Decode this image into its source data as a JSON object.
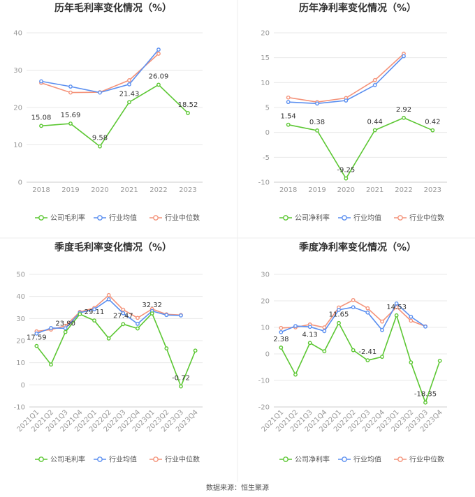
{
  "colors": {
    "company": "#5cc733",
    "industry_avg": "#5b8ff0",
    "industry_median": "#f4937a"
  },
  "legends": {
    "gross": [
      "公司毛利率",
      "行业均值",
      "行业中位数"
    ],
    "net": [
      "公司净利率",
      "行业均值",
      "行业中位数"
    ]
  },
  "source": "数据来源：恒生聚源",
  "chart_data": [
    {
      "type": "line",
      "title": "历年毛利率变化情况（%）",
      "categories": [
        "2018",
        "2019",
        "2020",
        "2021",
        "2022",
        "2023"
      ],
      "ylim": [
        0,
        40
      ],
      "yticks": [
        0,
        10,
        20,
        30,
        40
      ],
      "series": [
        {
          "name": "公司毛利率",
          "values": [
            15.08,
            15.69,
            9.58,
            21.43,
            26.09,
            18.52
          ],
          "labels": [
            "15.08",
            "15.69",
            "9.58",
            "21.43",
            "26.09",
            "18.52"
          ]
        },
        {
          "name": "行业均值",
          "values": [
            27.0,
            25.6,
            24.0,
            26.2,
            35.5,
            null
          ]
        },
        {
          "name": "行业中位数",
          "values": [
            26.6,
            24.0,
            24.1,
            27.3,
            34.4,
            null
          ]
        }
      ]
    },
    {
      "type": "line",
      "title": "历年净利率变化情况（%）",
      "categories": [
        "2018",
        "2019",
        "2020",
        "2021",
        "2022",
        "2023"
      ],
      "ylim": [
        -10,
        20
      ],
      "yticks": [
        -10,
        -5,
        0,
        5,
        10,
        15,
        20
      ],
      "series": [
        {
          "name": "公司净利率",
          "values": [
            1.54,
            0.38,
            -9.25,
            0.44,
            2.92,
            0.42
          ],
          "labels": [
            "1.54",
            "0.38",
            "-9.25",
            "0.44",
            "2.92",
            "0.42"
          ]
        },
        {
          "name": "行业均值",
          "values": [
            6.1,
            5.8,
            6.4,
            9.5,
            15.3,
            null
          ]
        },
        {
          "name": "行业中位数",
          "values": [
            7.0,
            6.1,
            6.9,
            10.5,
            15.8,
            null
          ]
        }
      ]
    },
    {
      "type": "line",
      "title": "季度毛利率变化情况（%）",
      "categories": [
        "2021Q1",
        "2021Q2",
        "2021Q3",
        "2021Q4",
        "2022Q1",
        "2022Q2",
        "2022Q3",
        "2022Q4",
        "2023Q1",
        "2023Q2",
        "2023Q3",
        "2023Q4"
      ],
      "ylim": [
        -10,
        50
      ],
      "yticks": [
        -10,
        0,
        10,
        20,
        30,
        40,
        50
      ],
      "series": [
        {
          "name": "公司毛利率",
          "values": [
            17.59,
            9.2,
            23.9,
            32.0,
            29.11,
            21.0,
            27.47,
            25.5,
            32.32,
            16.5,
            -0.72,
            15.5
          ],
          "labels": [
            "17.59",
            "",
            "23.90",
            "",
            "29.11",
            "",
            "27.47",
            "",
            "32.32",
            "",
            "-0.72",
            ""
          ]
        },
        {
          "name": "行业均值",
          "values": [
            23.2,
            25.7,
            25.6,
            32.6,
            34.2,
            38.7,
            32.4,
            27.6,
            33.4,
            31.6,
            31.4,
            null
          ]
        },
        {
          "name": "行业中位数",
          "values": [
            24.2,
            25.0,
            26.7,
            33.0,
            34.8,
            40.6,
            34.0,
            30.3,
            34.3,
            31.9,
            31.6,
            null
          ]
        }
      ]
    },
    {
      "type": "line",
      "title": "季度净利率变化情况（%）",
      "categories": [
        "2021Q1",
        "2021Q2",
        "2021Q3",
        "2021Q4",
        "2022Q1",
        "2022Q2",
        "2022Q3",
        "2022Q4",
        "2023Q1",
        "2023Q2",
        "2023Q3",
        "2023Q4"
      ],
      "ylim": [
        -20,
        30
      ],
      "yticks": [
        -20,
        -10,
        0,
        10,
        20,
        30
      ],
      "series": [
        {
          "name": "公司净利率",
          "values": [
            2.38,
            -7.8,
            4.13,
            1.0,
            11.65,
            1.4,
            -2.41,
            -1.1,
            14.53,
            -3.2,
            -18.35,
            -2.6
          ],
          "labels": [
            "2.38",
            "",
            "4.13",
            "",
            "11.65",
            "",
            "-2.41",
            "",
            "14.53",
            "",
            "-18.35",
            ""
          ]
        },
        {
          "name": "行业均值",
          "values": [
            8.2,
            10.5,
            10.2,
            8.6,
            16.6,
            17.6,
            15.6,
            9.0,
            19.0,
            14.0,
            10.3,
            null
          ]
        },
        {
          "name": "行业中位数",
          "values": [
            9.8,
            10.0,
            11.1,
            10.0,
            17.5,
            20.3,
            17.2,
            12.2,
            17.6,
            12.5,
            10.4,
            null
          ]
        }
      ]
    }
  ]
}
